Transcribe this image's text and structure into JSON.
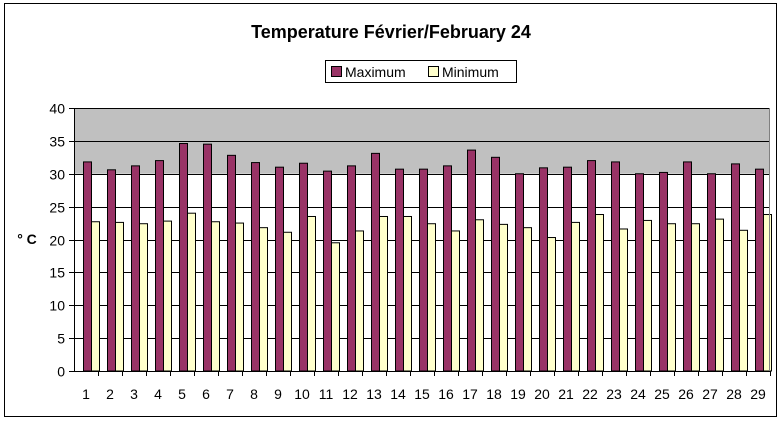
{
  "chart_data": {
    "type": "bar",
    "title": "Temperature Février/February 24",
    "ylabel": "° C",
    "xlabel": "",
    "ylim": [
      0,
      40
    ],
    "yticks": [
      0,
      5,
      10,
      15,
      20,
      25,
      30,
      35,
      40
    ],
    "grid": true,
    "legend_position": "top",
    "categories": [
      "1",
      "2",
      "3",
      "4",
      "5",
      "6",
      "7",
      "8",
      "9",
      "10",
      "11",
      "12",
      "13",
      "14",
      "15",
      "16",
      "17",
      "18",
      "19",
      "20",
      "21",
      "22",
      "23",
      "24",
      "25",
      "26",
      "27",
      "28",
      "29"
    ],
    "series": [
      {
        "name": "Maximum",
        "color": "#993366",
        "values": [
          31.8,
          30.6,
          31.2,
          32.0,
          34.6,
          34.5,
          32.8,
          31.7,
          31.0,
          31.6,
          30.4,
          31.2,
          33.1,
          30.7,
          30.7,
          31.2,
          33.6,
          32.5,
          30.0,
          30.9,
          31.0,
          32.0,
          31.8,
          30.0,
          30.2,
          31.8,
          30.0,
          31.5,
          30.7
        ]
      },
      {
        "name": "Minimum",
        "color": "#FFFFCC",
        "values": [
          22.7,
          22.6,
          22.4,
          22.8,
          24.0,
          22.7,
          22.5,
          21.8,
          21.1,
          23.5,
          19.5,
          21.3,
          23.5,
          23.5,
          22.4,
          21.3,
          23.0,
          22.3,
          21.8,
          20.3,
          22.6,
          23.8,
          21.6,
          22.9,
          22.4,
          22.4,
          23.1,
          21.4,
          23.8
        ]
      }
    ],
    "bands": [
      {
        "from": 30,
        "to": 40,
        "color": "#C0C0C0"
      }
    ]
  }
}
